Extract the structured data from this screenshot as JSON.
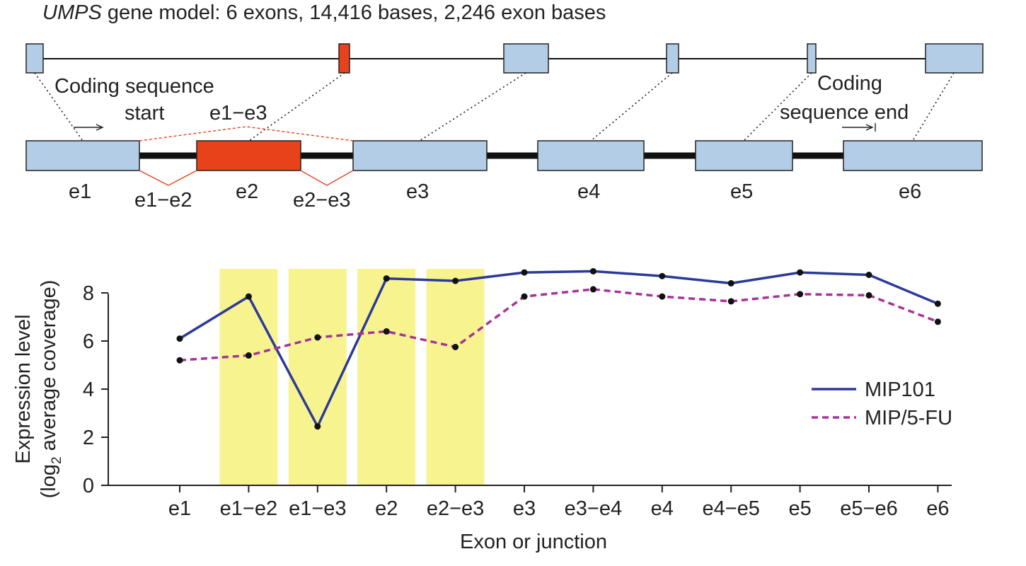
{
  "gene_model": {
    "gene": "UMPS",
    "title_rest": "gene model: 6 exons, 14,416 bases, 2,246 exon bases",
    "exon_labels": [
      "e1",
      "e2",
      "e3",
      "e4",
      "e5",
      "e6"
    ],
    "junction_labels": {
      "e1_e2": "e1−e2",
      "e2_e3": "e2−e3",
      "e1_e3": "e1−e3"
    },
    "annotations": {
      "cds_start_line1": "Coding sequence",
      "cds_start_line2": "start",
      "cds_end_line1": "Coding",
      "cds_end_line2": "sequence end"
    },
    "colors": {
      "exon": "#b3cde6",
      "highlight_exon": "#e8421a",
      "junction_line": "#e8421a",
      "intron": "#111111"
    }
  },
  "chart_data": {
    "type": "line",
    "categories": [
      "e1",
      "e1−e2",
      "e1−e3",
      "e2",
      "e2−e3",
      "e3",
      "e3−e4",
      "e4",
      "e4−e5",
      "e5",
      "e5−e6",
      "e6"
    ],
    "series": [
      {
        "name": "MIP101",
        "color": "#2b3a9a",
        "dash": "solid",
        "values": [
          6.1,
          7.85,
          2.45,
          8.6,
          8.5,
          8.85,
          8.9,
          8.7,
          8.4,
          8.85,
          8.75,
          7.55
        ]
      },
      {
        "name": "MIP/5-FU",
        "color": "#a8329c",
        "dash": "dashed",
        "values": [
          5.2,
          5.4,
          6.15,
          6.4,
          5.75,
          7.85,
          8.15,
          7.85,
          7.65,
          7.95,
          7.9,
          6.8
        ]
      }
    ],
    "highlighted_categories": [
      "e1−e2",
      "e1−e3",
      "e2",
      "e2−e3"
    ],
    "highlight_color": "#f7f48f",
    "ylim": [
      0,
      9
    ],
    "yticks": [
      0,
      2,
      4,
      6,
      8
    ],
    "xlabel": "Exon or junction",
    "ylabel_line1": "Expression level",
    "ylabel_line2_pre": "(log",
    "ylabel_line2_sub": "2",
    "ylabel_line2_post": " average coverage)",
    "legend_position": "right",
    "grid": false
  }
}
